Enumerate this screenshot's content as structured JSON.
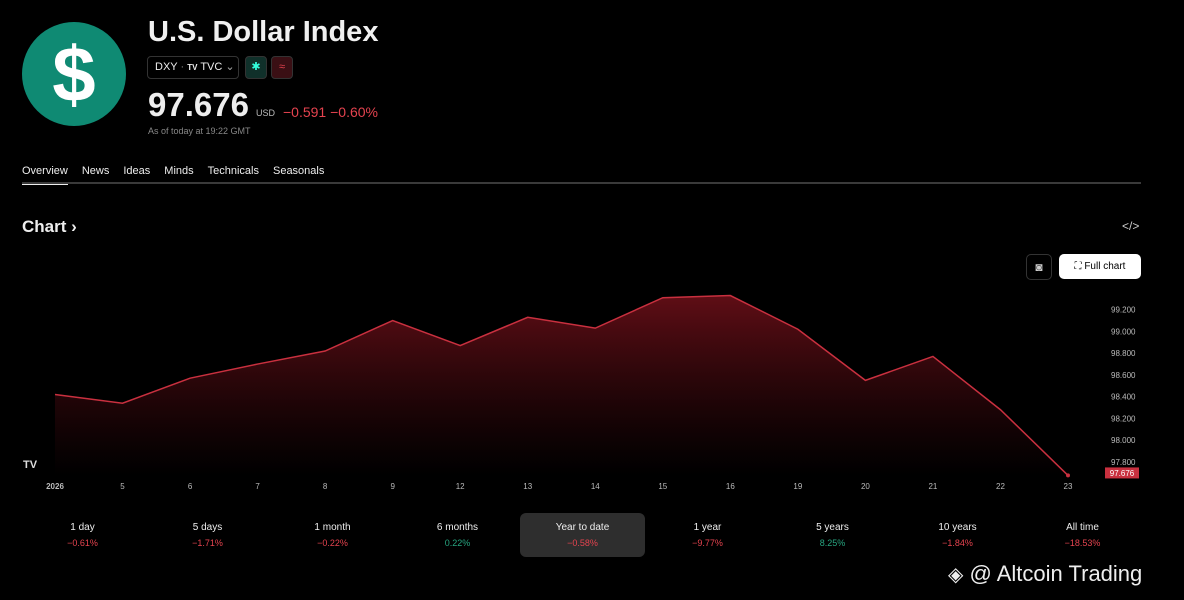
{
  "header": {
    "title": "U.S. Dollar Index",
    "symbol": "DXY",
    "exchange": "TVC",
    "price": "97.676",
    "currency": "USD",
    "change": "−0.591",
    "change_percent": "−0.60%",
    "timestamp": "As of today at 19:22 GMT"
  },
  "tabs": [
    "Overview",
    "News",
    "Ideas",
    "Minds",
    "Technicals",
    "Seasonals"
  ],
  "section_title": "Chart",
  "full_chart": "Full chart",
  "chart_data": {
    "type": "line",
    "categories": [
      "2026",
      "5",
      "6",
      "7",
      "8",
      "9",
      "12",
      "13",
      "14",
      "15",
      "16",
      "19",
      "20",
      "21",
      "22",
      "23"
    ],
    "series": [
      {
        "color": "#c9303f",
        "values": [
          98.42,
          98.34,
          98.57,
          98.7,
          98.82,
          99.1,
          98.87,
          99.13,
          99.03,
          99.31,
          99.33,
          99.02,
          98.55,
          98.77,
          98.28,
          97.676
        ]
      }
    ],
    "ylim": [
      97.68,
      99.39
    ],
    "yticks": [
      {
        "value": 97.8,
        "label": "97.800"
      },
      {
        "value": 98.0,
        "label": "98.000"
      },
      {
        "value": 98.2,
        "label": "98.200"
      },
      {
        "value": 98.4,
        "label": "98.400"
      },
      {
        "value": 98.6,
        "label": "98.600"
      },
      {
        "value": 98.8,
        "label": "98.800"
      },
      {
        "value": 99.0,
        "label": "99.000"
      },
      {
        "value": 99.2,
        "label": "99.200"
      }
    ]
  },
  "periods": [
    {
      "label": "1 day",
      "change": "−0.61%",
      "direction": "down"
    },
    {
      "label": "5 days",
      "change": "−1.71%",
      "direction": "down"
    },
    {
      "label": "1 month",
      "change": "−0.22%",
      "direction": "down"
    },
    {
      "label": "6 months",
      "change": "0.22%",
      "direction": "up"
    },
    {
      "label": "Year to date",
      "change": "−0.58%",
      "direction": "down"
    },
    {
      "label": "1 year",
      "change": "−9.77%",
      "direction": "down"
    },
    {
      "label": "5 years",
      "change": "8.25%",
      "direction": "up"
    },
    {
      "label": "10 years",
      "change": "−1.84%",
      "direction": "down"
    },
    {
      "label": "All time",
      "change": "−18.53%",
      "direction": "down"
    }
  ],
  "watermark": "@ Altcoin Trading"
}
